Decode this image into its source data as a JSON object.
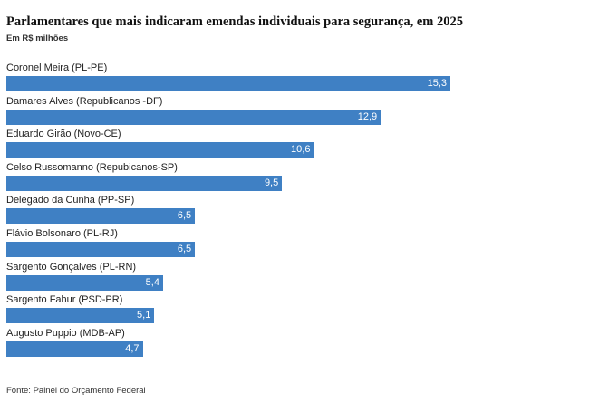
{
  "colors": {
    "bar": "#3f80c4"
  },
  "source": "Fonte: Painel do Orçamento Federal",
  "chart_data": {
    "type": "bar",
    "orientation": "horizontal",
    "title": "Parlamentares que mais indicaram emendas individuais para segurança, em 2025",
    "subtitle": "Em R$ milhões",
    "xlabel": "",
    "ylabel": "",
    "xlim": [
      0,
      15.3
    ],
    "grid": false,
    "categories": [
      "Coronel Meira (PL-PE)",
      "Damares Alves (Republicanos -DF)",
      "Eduardo Girão (Novo-CE)",
      "Celso Russomanno (Repubicanos-SP)",
      "Delegado da Cunha (PP-SP)",
      "Flávio Bolsonaro (PL-RJ)",
      "Sargento Gonçalves (PL-RN)",
      "Sargento Fahur (PSD-PR)",
      "Augusto Puppio (MDB-AP)"
    ],
    "values": [
      15.3,
      12.9,
      10.6,
      9.5,
      6.5,
      6.5,
      5.4,
      5.1,
      4.7
    ],
    "value_labels": [
      "15,3",
      "12,9",
      "10,6",
      "9,5",
      "6,5",
      "6,5",
      "5,4",
      "5,1",
      "4,7"
    ]
  }
}
